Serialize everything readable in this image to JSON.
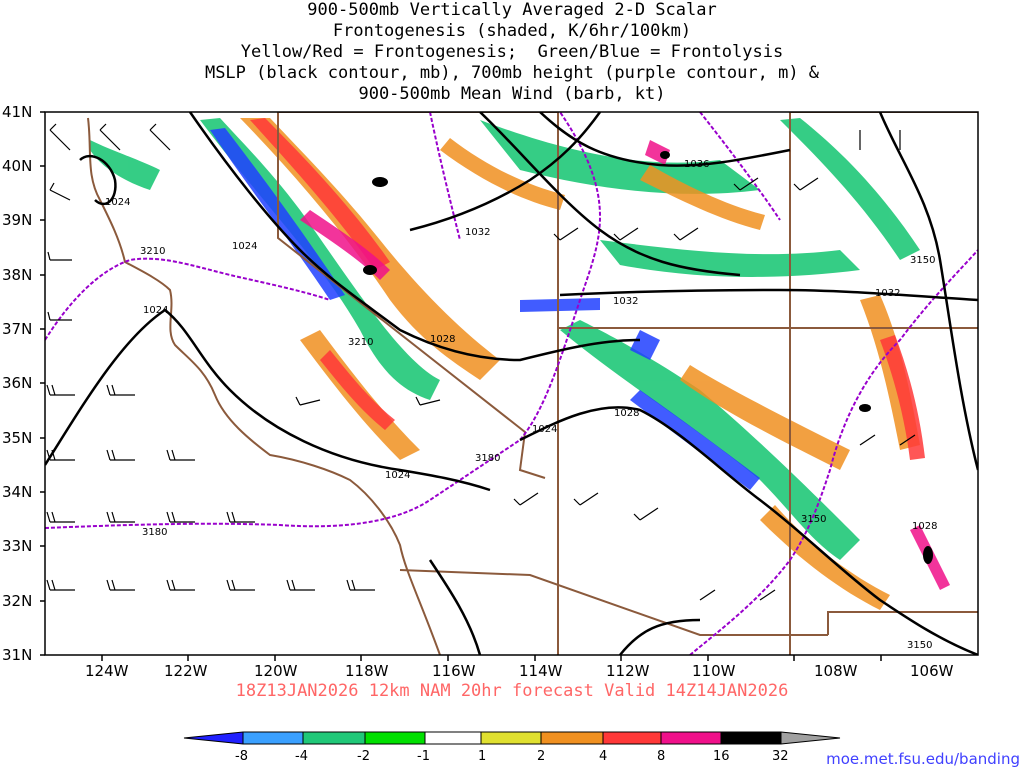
{
  "title": {
    "line1": "900-500mb Vertically Averaged 2-D Scalar",
    "line2": "Frontogenesis (shaded, K/6hr/100km)",
    "line3": "Yellow/Red = Frontogenesis;  Green/Blue = Frontolysis",
    "line4": "MSLP (black contour, mb), 700mb height (purple contour, m) &",
    "line5": "900-500mb Mean Wind (barb, kt)"
  },
  "axes": {
    "lat_labels": [
      "41N",
      "40N",
      "39N",
      "38N",
      "37N",
      "36N",
      "35N",
      "34N",
      "33N",
      "32N",
      "31N"
    ],
    "lon_labels": [
      "124W",
      "122W",
      "120W",
      "118W",
      "116W",
      "114W",
      "112W",
      "110W",
      "108W",
      "106W"
    ]
  },
  "contours": {
    "mslp_labels": [
      "1024",
      "1024",
      "1024",
      "1032",
      "1036",
      "1032",
      "1032",
      "1028",
      "1028",
      "1024",
      "1024",
      "1028"
    ],
    "height_labels": [
      "3210",
      "3210",
      "3180",
      "3180",
      "3150",
      "3150",
      "3150"
    ]
  },
  "forecast": "18Z13JAN2026 12km NAM 20hr forecast Valid 14Z14JAN2026",
  "colorbar": {
    "labels": [
      "-8",
      "-4",
      "-2",
      "-1",
      "1",
      "2",
      "4",
      "8",
      "16",
      "32"
    ],
    "colors": [
      "#2020ff",
      "#3aa0ff",
      "#20c878",
      "#00e000",
      "#ffffff",
      "#e0e030",
      "#f09020",
      "#ff3838",
      "#f0108a",
      "#000000",
      "#a0a0a0"
    ]
  },
  "credit": "moe.met.fsu.edu/banding",
  "colors": {
    "state_border": "#8b5a3c",
    "height_contour": "#9900cc",
    "mslp_contour": "#000000"
  }
}
